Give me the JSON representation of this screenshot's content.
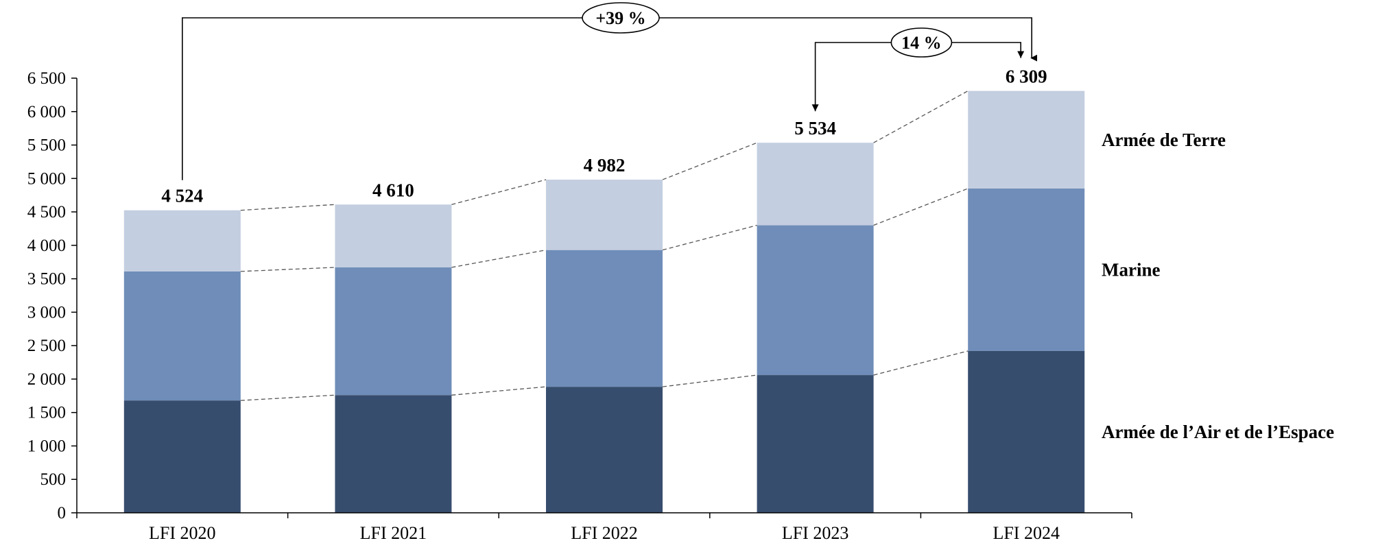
{
  "chart_data": {
    "type": "bar",
    "stacked": true,
    "categories": [
      "LFI 2020",
      "LFI 2021",
      "LFI 2022",
      "LFI 2023",
      "LFI 2024"
    ],
    "series": [
      {
        "name": "Armée de l’Air et de l’Espace",
        "values": [
          1680,
          1760,
          1885,
          2060,
          2420
        ],
        "color": "#374d6e"
      },
      {
        "name": "Marine",
        "values": [
          1930,
          1910,
          2045,
          2240,
          2430
        ],
        "color": "#6f8db8"
      },
      {
        "name": "Armée de Terre",
        "values": [
          914,
          940,
          1052,
          1234,
          1459
        ],
        "color": "#c3cee0"
      }
    ],
    "totals": [
      4524,
      4610,
      4982,
      5534,
      6309
    ],
    "total_labels": [
      "4 524",
      "4 610",
      "4 982",
      "5 534",
      "6 309"
    ],
    "ylim": [
      0,
      6500
    ],
    "yticks": [
      0,
      500,
      1000,
      1500,
      2000,
      2500,
      3000,
      3500,
      4000,
      4500,
      5000,
      5500,
      6000,
      6500
    ],
    "ytick_labels": [
      "0",
      "500",
      "1 000",
      "1 500",
      "2 000",
      "2 500",
      "3 000",
      "3 500",
      "4 000",
      "4 500",
      "5 000",
      "5 500",
      "6 000",
      "6 500"
    ],
    "legend_position": "right",
    "grid": false,
    "connector_lines": "dashed",
    "annotations": [
      {
        "label": "+39 %",
        "from": "LFI 2020",
        "to": "LFI 2024"
      },
      {
        "label": "14 %",
        "from": "LFI 2023",
        "to": "LFI 2024"
      }
    ]
  }
}
